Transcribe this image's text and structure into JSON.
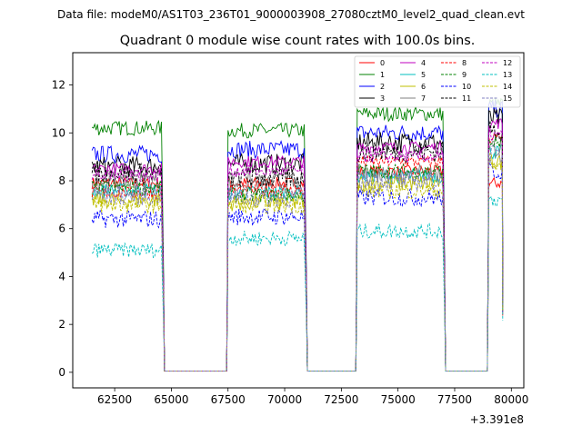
{
  "chart_data": {
    "type": "line",
    "suptitle": "Data file: modeM0/AS1T03_236T01_9000003908_27080cztM0_level2_quad_clean.evt",
    "title": "Quadrant 0 module wise count rates with 100.0s bins.",
    "xlabel": "",
    "ylabel": "",
    "x_offset_label": "+3.391e8",
    "xlim": [
      60650,
      80550
    ],
    "ylim": [
      -0.65,
      13.35
    ],
    "x_ticks": [
      62500,
      65000,
      67500,
      70000,
      72500,
      75000,
      77500,
      80000
    ],
    "x_tick_labels": [
      "62500",
      "65000",
      "67500",
      "70000",
      "72500",
      "75000",
      "77500",
      "80000"
    ],
    "y_ticks": [
      0,
      2,
      4,
      6,
      8,
      10,
      12
    ],
    "y_tick_labels": [
      "0",
      "2",
      "4",
      "6",
      "8",
      "10",
      "12"
    ],
    "gaps": [
      [
        64700,
        67500
      ],
      [
        70900,
        73200
      ],
      [
        77000,
        79000
      ]
    ],
    "segments": [
      [
        61500,
        64600
      ],
      [
        67500,
        70900
      ],
      [
        73200,
        77000
      ],
      [
        79000,
        79600
      ]
    ],
    "legend": {
      "location": "top-right",
      "columns": 4
    },
    "series": [
      {
        "name": "0",
        "color": "#ff0000",
        "dash": "solid",
        "levels": [
          7.9,
          7.9,
          8.4,
          7.9
        ]
      },
      {
        "name": "1",
        "color": "#008000",
        "dash": "solid",
        "levels": [
          10.2,
          10.1,
          10.8,
          11.2
        ]
      },
      {
        "name": "2",
        "color": "#0000ff",
        "dash": "solid",
        "levels": [
          9.1,
          9.3,
          10.0,
          11.0
        ]
      },
      {
        "name": "3",
        "color": "#000000",
        "dash": "solid",
        "levels": [
          8.6,
          8.7,
          9.6,
          10.6
        ]
      },
      {
        "name": "4",
        "color": "#bf00bf",
        "dash": "solid",
        "levels": [
          8.5,
          8.8,
          9.4,
          10.4
        ]
      },
      {
        "name": "5",
        "color": "#00bfbf",
        "dash": "solid",
        "levels": [
          7.6,
          7.5,
          8.2,
          9.2
        ]
      },
      {
        "name": "6",
        "color": "#bfbf00",
        "dash": "solid",
        "levels": [
          7.2,
          7.1,
          7.9,
          8.8
        ]
      },
      {
        "name": "7",
        "color": "#808080",
        "dash": "solid",
        "levels": [
          8.0,
          7.9,
          8.3,
          9.4
        ]
      },
      {
        "name": "8",
        "color": "#ff0000",
        "dash": "dashed",
        "levels": [
          7.5,
          7.6,
          8.8,
          9.8
        ]
      },
      {
        "name": "9",
        "color": "#008000",
        "dash": "dashed",
        "levels": [
          7.7,
          7.4,
          8.4,
          9.6
        ]
      },
      {
        "name": "10",
        "color": "#0000ff",
        "dash": "dashed",
        "levels": [
          6.4,
          6.5,
          7.3,
          8.4
        ]
      },
      {
        "name": "11",
        "color": "#000000",
        "dash": "dashed",
        "levels": [
          8.3,
          8.1,
          9.2,
          10.1
        ]
      },
      {
        "name": "12",
        "color": "#bf00bf",
        "dash": "dashed",
        "levels": [
          8.2,
          8.4,
          9.0,
          9.9
        ]
      },
      {
        "name": "13",
        "color": "#00bfbf",
        "dash": "dashed",
        "levels": [
          5.1,
          5.6,
          5.9,
          7.2
        ]
      },
      {
        "name": "14",
        "color": "#bfbf00",
        "dash": "dashed",
        "levels": [
          7.0,
          7.0,
          7.6,
          8.6
        ]
      },
      {
        "name": "15",
        "color": "#8080c0",
        "dash": "dashed",
        "levels": [
          7.4,
          7.3,
          8.0,
          9.1
        ]
      }
    ]
  }
}
